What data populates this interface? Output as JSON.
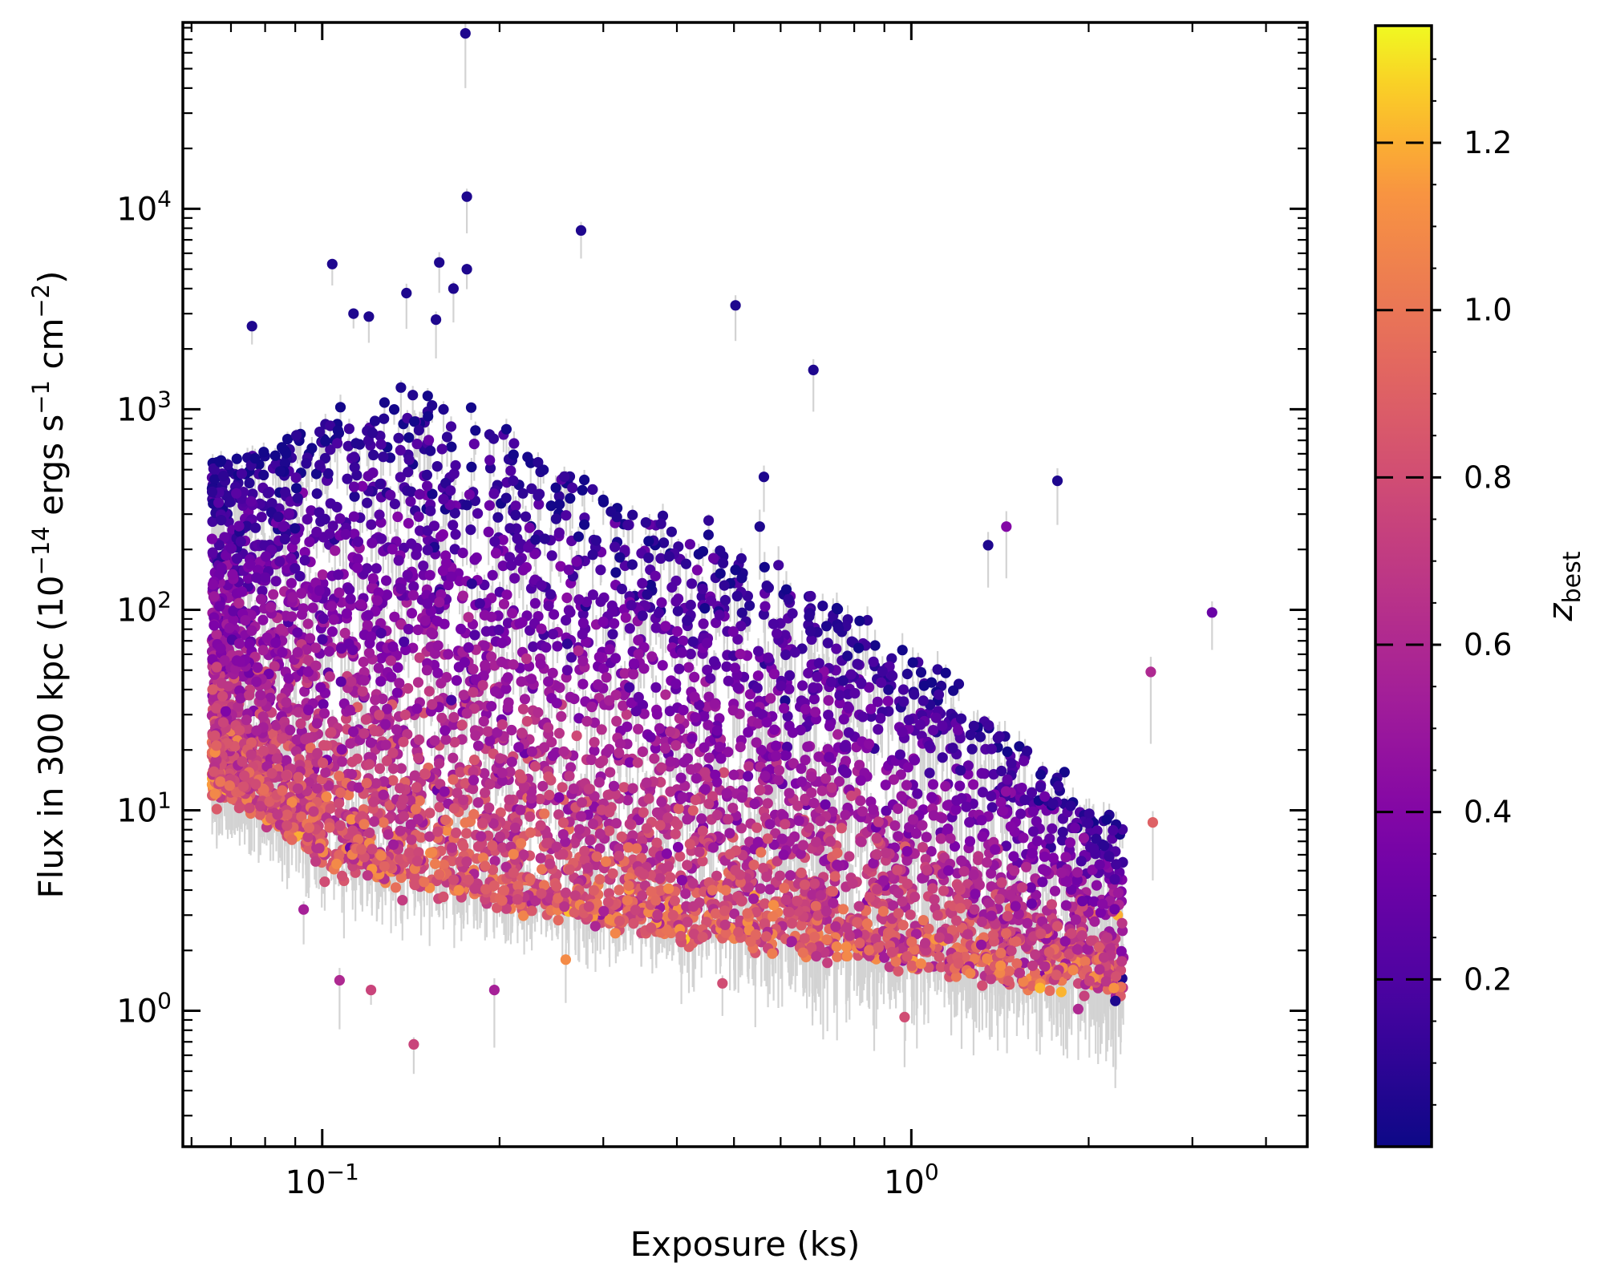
{
  "chart_data": {
    "type": "scatter",
    "xlabel": "Exposure (ks)",
    "ylabel": "Flux in 300 kpc (10^-14 ergs s^-1 cm^-2)",
    "xscale": "log",
    "yscale": "log",
    "xlim": [
      0.058,
      4.7
    ],
    "ylim": [
      0.21,
      85000
    ],
    "x_ticks": [
      {
        "value": 0.1,
        "base": "10",
        "exp": "−1"
      },
      {
        "value": 1,
        "base": "10",
        "exp": "0"
      }
    ],
    "y_ticks": [
      {
        "value": 1,
        "base": "10",
        "exp": "0"
      },
      {
        "value": 10,
        "base": "10",
        "exp": "1"
      },
      {
        "value": 100,
        "base": "10",
        "exp": "2"
      },
      {
        "value": 1000,
        "base": "10",
        "exp": "3"
      },
      {
        "value": 10000,
        "base": "10",
        "exp": "4"
      }
    ],
    "ylabel_parts": {
      "main": "Flux in 300 kpc (10",
      "exp1": "−14",
      "mid": " ergs s",
      "exp2": "−1",
      "mid2": " cm",
      "exp3": "−2",
      "end": ")"
    },
    "colorbar": {
      "label": "z",
      "label_sub": "best",
      "colormap": "plasma",
      "range": [
        0.0,
        1.34
      ],
      "ticks": [
        "0.2",
        "0.4",
        "0.6",
        "0.8",
        "1.0",
        "1.2"
      ],
      "tick_values": [
        0.2,
        0.4,
        0.6,
        0.8,
        1.0,
        1.2
      ]
    },
    "errorbar_color": "#d3d3d3",
    "notable_points": [
      {
        "x": 0.175,
        "y": 75000,
        "z": 0.05
      },
      {
        "x": 0.176,
        "y": 11500,
        "z": 0.05
      },
      {
        "x": 0.275,
        "y": 7800,
        "z": 0.05
      },
      {
        "x": 0.104,
        "y": 5300,
        "z": 0.05
      },
      {
        "x": 0.158,
        "y": 5400,
        "z": 0.05
      },
      {
        "x": 0.176,
        "y": 5000,
        "z": 0.05
      },
      {
        "x": 0.139,
        "y": 3800,
        "z": 0.05
      },
      {
        "x": 0.167,
        "y": 4000,
        "z": 0.05
      },
      {
        "x": 0.503,
        "y": 3300,
        "z": 0.05
      },
      {
        "x": 0.113,
        "y": 3000,
        "z": 0.05
      },
      {
        "x": 0.12,
        "y": 2900,
        "z": 0.05
      },
      {
        "x": 0.076,
        "y": 2600,
        "z": 0.05
      },
      {
        "x": 0.156,
        "y": 2800,
        "z": 0.05
      },
      {
        "x": 0.682,
        "y": 1570,
        "z": 0.05
      },
      {
        "x": 1.77,
        "y": 440,
        "z": 0.05
      },
      {
        "x": 0.562,
        "y": 460,
        "z": 0.05
      },
      {
        "x": 0.553,
        "y": 260,
        "z": 0.05
      },
      {
        "x": 1.35,
        "y": 210,
        "z": 0.05
      },
      {
        "x": 1.45,
        "y": 260,
        "z": 0.4
      },
      {
        "x": 3.24,
        "y": 97,
        "z": 0.3
      },
      {
        "x": 2.55,
        "y": 49,
        "z": 0.6
      },
      {
        "x": 2.57,
        "y": 8.7,
        "z": 0.9
      },
      {
        "x": 0.143,
        "y": 0.68,
        "z": 0.75
      },
      {
        "x": 0.107,
        "y": 1.42,
        "z": 0.6
      },
      {
        "x": 0.121,
        "y": 1.27,
        "z": 0.75
      },
      {
        "x": 0.196,
        "y": 1.27,
        "z": 0.55
      },
      {
        "x": 0.093,
        "y": 3.2,
        "z": 0.55
      },
      {
        "x": 0.101,
        "y": 4.4,
        "z": 0.8
      },
      {
        "x": 0.259,
        "y": 1.8,
        "z": 1.1
      },
      {
        "x": 0.478,
        "y": 1.37,
        "z": 0.8
      },
      {
        "x": 0.974,
        "y": 0.93,
        "z": 0.8
      },
      {
        "x": 1.92,
        "y": 1.02,
        "z": 0.6
      },
      {
        "x": 2.22,
        "y": 1.12,
        "z": 0.05
      },
      {
        "x": 2.28,
        "y": 1.45,
        "z": 0.05
      },
      {
        "x": 2.24,
        "y": 3.0,
        "z": 1.2
      },
      {
        "x": 1.91,
        "y": 1.75,
        "z": 1.1
      },
      {
        "x": 2.06,
        "y": 7.2,
        "z": 0.1
      }
    ],
    "cloud": {
      "description": "dense population, ~6000 sources",
      "x_range": [
        0.065,
        2.6
      ],
      "z_range": [
        0.0,
        1.3
      ],
      "lower_envelope": [
        {
          "x": 0.068,
          "y": 13
        },
        {
          "x": 0.1,
          "y": 6.0
        },
        {
          "x": 0.2,
          "y": 3.6
        },
        {
          "x": 0.5,
          "y": 2.3
        },
        {
          "x": 1.0,
          "y": 1.8
        },
        {
          "x": 2.3,
          "y": 1.3
        }
      ],
      "upper_envelope": [
        {
          "x": 0.07,
          "y": 550
        },
        {
          "x": 0.15,
          "y": 1200
        },
        {
          "x": 0.3,
          "y": 400
        },
        {
          "x": 0.6,
          "y": 150
        },
        {
          "x": 1.0,
          "y": 60
        },
        {
          "x": 2.3,
          "y": 8
        }
      ]
    }
  }
}
